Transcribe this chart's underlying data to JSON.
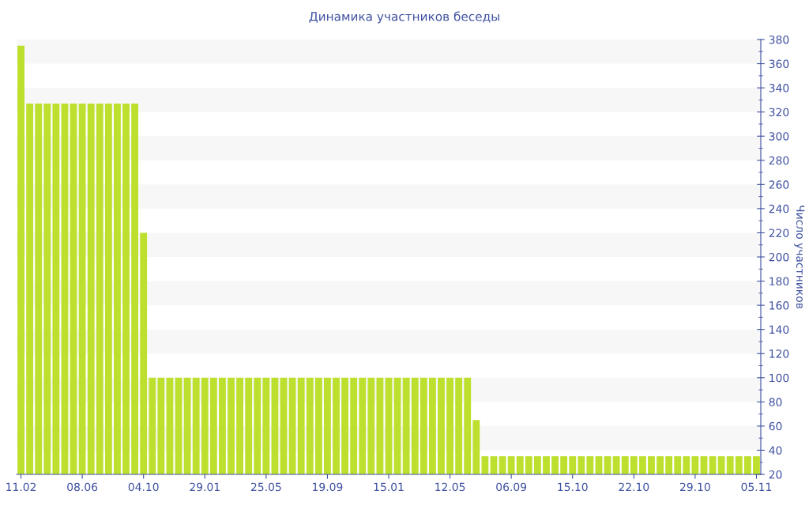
{
  "chart_data": {
    "type": "bar",
    "title": "Динамика участников беседы",
    "ylabel": "Число участников",
    "categories": [
      "11.02",
      null,
      null,
      null,
      null,
      null,
      null,
      "08.06",
      null,
      null,
      null,
      null,
      null,
      null,
      "04.10",
      null,
      null,
      null,
      null,
      null,
      null,
      "29.01",
      null,
      null,
      null,
      null,
      null,
      null,
      "25.05",
      null,
      null,
      null,
      null,
      null,
      null,
      "19.09",
      null,
      null,
      null,
      null,
      null,
      null,
      "15.01",
      null,
      null,
      null,
      null,
      null,
      null,
      "12.05",
      null,
      null,
      null,
      null,
      null,
      null,
      "06.09",
      null,
      null,
      null,
      null,
      null,
      null,
      "15.10",
      null,
      null,
      null,
      null,
      null,
      null,
      "22.10",
      null,
      null,
      null,
      null,
      null,
      null,
      "29.10",
      null,
      null,
      null,
      null,
      null,
      null,
      "05.11"
    ],
    "values": [
      375,
      327,
      327,
      327,
      327,
      327,
      327,
      327,
      327,
      327,
      327,
      327,
      327,
      327,
      220,
      100,
      100,
      100,
      100,
      100,
      100,
      100,
      100,
      100,
      100,
      100,
      100,
      100,
      100,
      100,
      100,
      100,
      100,
      100,
      100,
      100,
      100,
      100,
      100,
      100,
      100,
      100,
      100,
      100,
      100,
      100,
      100,
      100,
      100,
      100,
      100,
      100,
      65,
      35,
      35,
      35,
      35,
      35,
      35,
      35,
      35,
      35,
      35,
      35,
      35,
      35,
      35,
      35,
      35,
      35,
      35,
      35,
      35,
      35,
      35,
      35,
      35,
      35,
      35,
      35,
      35,
      35,
      35,
      35,
      35
    ],
    "color": "#bde02e",
    "ylim": [
      20,
      380
    ],
    "yticks": [
      20,
      40,
      60,
      80,
      100,
      120,
      140,
      160,
      180,
      200,
      220,
      240,
      260,
      280,
      300,
      320,
      340,
      360,
      380
    ],
    "bands": [
      {
        "axis": "y",
        "from": 40,
        "to": 60,
        "color": "#f7f7f7"
      },
      {
        "axis": "y",
        "from": 80,
        "to": 100,
        "color": "#f7f7f7"
      },
      {
        "axis": "y",
        "from": 120,
        "to": 140,
        "color": "#f7f7f7"
      },
      {
        "axis": "y",
        "from": 160,
        "to": 180,
        "color": "#f7f7f7"
      },
      {
        "axis": "y",
        "from": 200,
        "to": 220,
        "color": "#f7f7f7"
      },
      {
        "axis": "y",
        "from": 240,
        "to": 260,
        "color": "#f7f7f7"
      },
      {
        "axis": "y",
        "from": 280,
        "to": 300,
        "color": "#f7f7f7"
      },
      {
        "axis": "y",
        "from": 320,
        "to": 340,
        "color": "#f7f7f7"
      },
      {
        "axis": "y",
        "from": 360,
        "to": 380,
        "color": "#f7f7f7"
      }
    ],
    "grid": false,
    "legend": false
  }
}
